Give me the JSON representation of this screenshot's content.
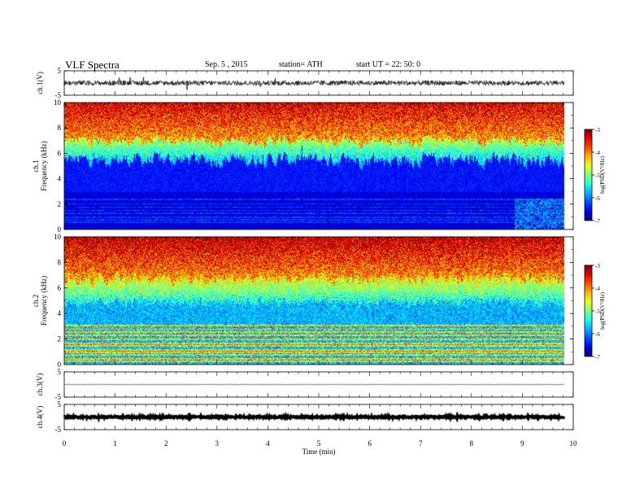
{
  "header": {
    "title": "VLF  Spectra",
    "date": "Sep. 5  , 2015",
    "station": "station= ATH",
    "start": "start  UT  =    22: 50: 0"
  },
  "chart_data": [
    {
      "type": "line",
      "name": "ch1-waveform",
      "ylabel": "ch.1(V)",
      "ylim": [
        -5,
        5
      ],
      "yticks": [
        "5",
        "-5"
      ],
      "xlim": [
        0,
        10
      ],
      "data_extent_min": 9.82,
      "baseline": 0,
      "noise": 1.0
    },
    {
      "type": "heatmap",
      "name": "ch1-spectrogram",
      "ylabel": "ch.1\nFrequency  (kHz)",
      "ylim": [
        0,
        10
      ],
      "yticks": [
        "0",
        "2",
        "4",
        "6",
        "8",
        "10"
      ],
      "xlim": [
        0,
        10
      ],
      "data_extent_min": 9.82,
      "colorbar": {
        "label": "log(PSD(V²/Hz)",
        "range": [
          -7,
          -3
        ],
        "ticks": [
          "-3",
          "-4",
          "-5",
          "-6",
          "-7"
        ]
      }
    },
    {
      "type": "heatmap",
      "name": "ch2-spectrogram",
      "ylabel": "ch.2\nFrequency  (kHz)",
      "ylim": [
        0,
        10
      ],
      "yticks": [
        "0",
        "2",
        "4",
        "6",
        "8",
        "10"
      ],
      "xlim": [
        0,
        10
      ],
      "data_extent_min": 9.82,
      "colorbar": {
        "label": "log(PSD(V²/Hz)",
        "range": [
          -7,
          -3
        ],
        "ticks": [
          "-3",
          "-4",
          "-5",
          "-6",
          "-7"
        ]
      }
    },
    {
      "type": "line",
      "name": "ch3-waveform",
      "ylabel": "ch.3(V)",
      "ylim": [
        -5,
        5
      ],
      "yticks": [
        "5",
        "-5"
      ],
      "xlim": [
        0,
        10
      ],
      "data_extent_min": 9.82,
      "baseline": 0,
      "noise": 0.1
    },
    {
      "type": "line",
      "name": "ch4-waveform",
      "ylabel": "ch.4(V)",
      "ylim": [
        -5,
        5
      ],
      "yticks": [
        "5",
        "-5"
      ],
      "xlim": [
        0,
        10
      ],
      "data_extent_min": 9.82,
      "baseline": 0,
      "noise": 0.3
    }
  ],
  "x_axis": {
    "label": "Time  (min)",
    "ticks": [
      "0",
      "1",
      "2",
      "3",
      "4",
      "5",
      "6",
      "7",
      "8",
      "9",
      "10"
    ]
  }
}
